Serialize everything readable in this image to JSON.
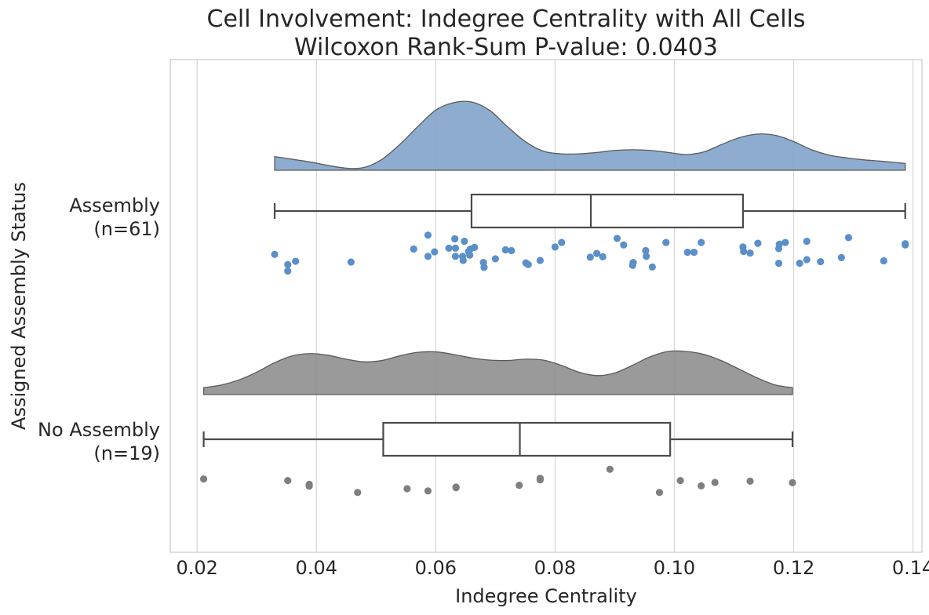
{
  "chart_data": {
    "type": "raincloud",
    "title": "Cell Involvement: Indegree Centrality with All Cells",
    "subtitle": "Wilcoxon Rank-Sum P-value: 0.0403",
    "xlabel": "Indegree Centrality",
    "ylabel": "Assigned Assembly Status",
    "xlim": [
      0.0155,
      0.1415
    ],
    "xticks": [
      "0.02",
      "0.04",
      "0.06",
      "0.08",
      "0.10",
      "0.12",
      "0.14"
    ],
    "grid": "vertical",
    "groups": [
      {
        "label_line1": "Assembly",
        "label_line2": "(n=61)",
        "color": "#5b8fc9",
        "cloud_color": "#7ea1c8",
        "box": {
          "whislo": 0.033,
          "q1": 0.066,
          "median": 0.086,
          "q3": 0.1115,
          "whishi": 0.1387
        },
        "density": {
          "x": [
            0.033,
            0.036,
            0.039,
            0.042,
            0.045,
            0.048,
            0.051,
            0.054,
            0.057,
            0.06,
            0.063,
            0.066,
            0.069,
            0.072,
            0.075,
            0.078,
            0.081,
            0.084,
            0.087,
            0.09,
            0.093,
            0.096,
            0.099,
            0.102,
            0.105,
            0.108,
            0.111,
            0.114,
            0.117,
            0.12,
            0.123,
            0.126,
            0.129,
            0.132,
            0.135,
            0.1387
          ],
          "y": [
            0.2,
            0.16,
            0.12,
            0.07,
            0.03,
            0.04,
            0.16,
            0.38,
            0.64,
            0.88,
            0.99,
            1.0,
            0.88,
            0.64,
            0.42,
            0.28,
            0.24,
            0.24,
            0.26,
            0.29,
            0.3,
            0.29,
            0.26,
            0.23,
            0.27,
            0.38,
            0.48,
            0.53,
            0.51,
            0.42,
            0.3,
            0.22,
            0.18,
            0.15,
            0.13,
            0.1
          ]
        },
        "points": [
          0.033,
          0.0352,
          0.0352,
          0.0365,
          0.0458,
          0.0563,
          0.0587,
          0.0587,
          0.0622,
          0.0632,
          0.0633,
          0.0633,
          0.0645,
          0.0646,
          0.0648,
          0.0655,
          0.0657,
          0.0658,
          0.0665,
          0.068,
          0.0681,
          0.07,
          0.0717,
          0.0727,
          0.0751,
          0.0775,
          0.08,
          0.0811,
          0.0859,
          0.087,
          0.088,
          0.0904,
          0.0915,
          0.093,
          0.0952,
          0.0953,
          0.0963,
          0.0986,
          0.1022,
          0.1033,
          0.1045,
          0.1115,
          0.1116,
          0.1127,
          0.114,
          0.1175,
          0.1175,
          0.1176,
          0.1186,
          0.121,
          0.1222,
          0.1222,
          0.1245,
          0.128,
          0.1292,
          0.1351,
          0.1387,
          0.1387,
          0.0598,
          0.0755,
          0.0931
        ],
        "jitter": [
          0.35,
          0.6,
          0.76,
          0.52,
          0.54,
          0.22,
          -0.12,
          0.4,
          0.2,
          -0.03,
          0.4,
          0.2,
          0.4,
          0.5,
          0.03,
          0.28,
          0.37,
          0.22,
          0.18,
          0.55,
          0.67,
          0.46,
          0.24,
          0.26,
          0.56,
          0.5,
          0.17,
          0.06,
          0.42,
          0.33,
          0.41,
          -0.04,
          0.12,
          0.62,
          0.26,
          0.4,
          0.66,
          0.06,
          0.3,
          0.3,
          0.06,
          0.17,
          0.28,
          0.32,
          0.08,
          0.21,
          0.57,
          0.1,
          0.06,
          0.57,
          0.03,
          0.48,
          0.53,
          0.43,
          -0.06,
          0.51,
          0.09,
          0.12,
          0.29,
          0.6,
          0.55
        ]
      },
      {
        "label_line1": "No Assembly",
        "label_line2": "(n=19)",
        "color": "#7f7f7f",
        "cloud_color": "#8c8c8c",
        "box": {
          "whislo": 0.0211,
          "q1": 0.0512,
          "median": 0.0741,
          "q3": 0.0993,
          "whishi": 0.1198
        },
        "density": {
          "x": [
            0.0211,
            0.024,
            0.027,
            0.03,
            0.033,
            0.036,
            0.039,
            0.042,
            0.045,
            0.048,
            0.051,
            0.054,
            0.057,
            0.06,
            0.063,
            0.066,
            0.069,
            0.072,
            0.075,
            0.078,
            0.081,
            0.084,
            0.087,
            0.09,
            0.093,
            0.096,
            0.099,
            0.102,
            0.105,
            0.108,
            0.111,
            0.114,
            0.117,
            0.1198
          ],
          "y": [
            0.16,
            0.22,
            0.34,
            0.52,
            0.74,
            0.9,
            0.95,
            0.91,
            0.82,
            0.76,
            0.79,
            0.9,
            0.98,
            0.99,
            0.93,
            0.85,
            0.8,
            0.79,
            0.82,
            0.8,
            0.68,
            0.52,
            0.44,
            0.5,
            0.68,
            0.88,
            1.0,
            1.0,
            0.93,
            0.78,
            0.58,
            0.38,
            0.22,
            0.16
          ]
        },
        "points": [
          0.0211,
          0.0352,
          0.0388,
          0.0388,
          0.0469,
          0.0552,
          0.0587,
          0.0634,
          0.0634,
          0.074,
          0.0775,
          0.0775,
          0.0892,
          0.0975,
          0.101,
          0.1045,
          0.1068,
          0.1127,
          0.1198
        ],
        "jitter": [
          0.19,
          0.24,
          0.36,
          0.42,
          0.62,
          0.5,
          0.57,
          0.45,
          0.47,
          0.39,
          0.17,
          0.22,
          -0.12,
          0.62,
          0.24,
          0.41,
          0.3,
          0.26,
          0.31
        ]
      }
    ]
  }
}
